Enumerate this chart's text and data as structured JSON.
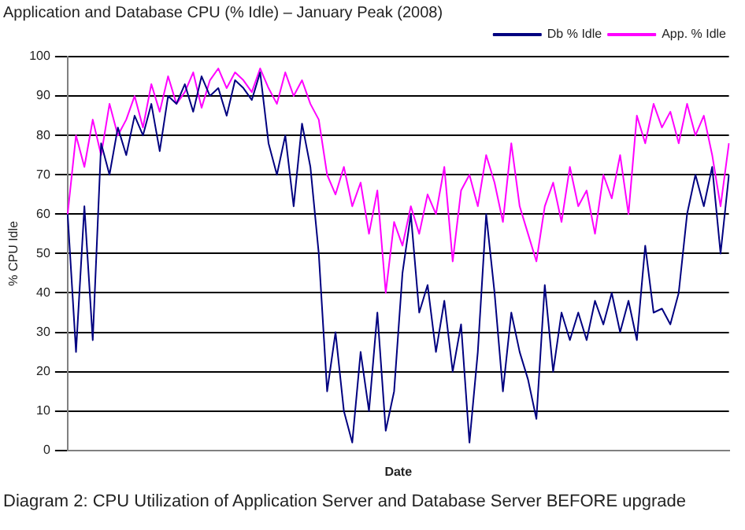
{
  "chart_data": {
    "type": "line",
    "title": "Application and Database CPU (% Idle) – January Peak (2008)",
    "xlabel": "Date",
    "ylabel": "% CPU Idle",
    "annotations": [
      "Diagram 2: CPU Utilization of Application Server and Database Server BEFORE upgrade"
    ],
    "categories": [
      null,
      null,
      null,
      null,
      null,
      null,
      null,
      null,
      null,
      null,
      null,
      null,
      null,
      null,
      null,
      null,
      null,
      null,
      null,
      null,
      null,
      null,
      null,
      null,
      null,
      null,
      null,
      null,
      null,
      null,
      null,
      null,
      null,
      null,
      null,
      null,
      null,
      null,
      null,
      null,
      null,
      null,
      null,
      null,
      null,
      null,
      null,
      null,
      null,
      null,
      null,
      null,
      null,
      null,
      null,
      null,
      null,
      null,
      null,
      null,
      null,
      null,
      null,
      null,
      null,
      null,
      null,
      null,
      null,
      null,
      null,
      null,
      null,
      null,
      null,
      null,
      null,
      null,
      null,
      null
    ],
    "series": [
      {
        "name": "Db % Idle",
        "color": "#000080",
        "values": [
          60,
          25,
          62,
          28,
          78,
          70,
          82,
          75,
          85,
          80,
          88,
          76,
          90,
          88,
          93,
          86,
          95,
          90,
          92,
          85,
          94,
          92,
          89,
          96,
          78,
          70,
          80,
          62,
          83,
          72,
          50,
          15,
          30,
          10,
          2,
          25,
          10,
          35,
          5,
          15,
          45,
          60,
          35,
          42,
          25,
          38,
          20,
          32,
          2,
          25,
          60,
          40,
          15,
          35,
          25,
          18,
          8,
          42,
          20,
          35,
          28,
          35,
          28,
          38,
          32,
          40,
          30,
          38,
          28,
          52,
          35,
          36,
          32,
          40,
          60,
          70,
          62,
          72,
          50,
          70
        ]
      },
      {
        "name": "App. % Idle",
        "color": "#ff00ff",
        "values": [
          60,
          80,
          72,
          84,
          75,
          88,
          80,
          84,
          90,
          82,
          93,
          86,
          95,
          88,
          91,
          96,
          87,
          94,
          97,
          92,
          96,
          94,
          91,
          97,
          92,
          88,
          96,
          90,
          94,
          88,
          84,
          70,
          65,
          72,
          62,
          68,
          55,
          66,
          40,
          58,
          52,
          62,
          55,
          65,
          60,
          72,
          48,
          66,
          70,
          62,
          75,
          68,
          58,
          78,
          62,
          55,
          48,
          62,
          68,
          58,
          72,
          62,
          66,
          55,
          70,
          64,
          75,
          60,
          85,
          78,
          88,
          82,
          86,
          78,
          88,
          80,
          85,
          75,
          62,
          78
        ]
      }
    ],
    "ylim": [
      0,
      100
    ],
    "yticks": [
      0,
      10,
      20,
      30,
      40,
      50,
      60,
      70,
      80,
      90,
      100
    ],
    "grid": "y",
    "legend": "top right",
    "marker": "none",
    "line_style": "solid"
  }
}
